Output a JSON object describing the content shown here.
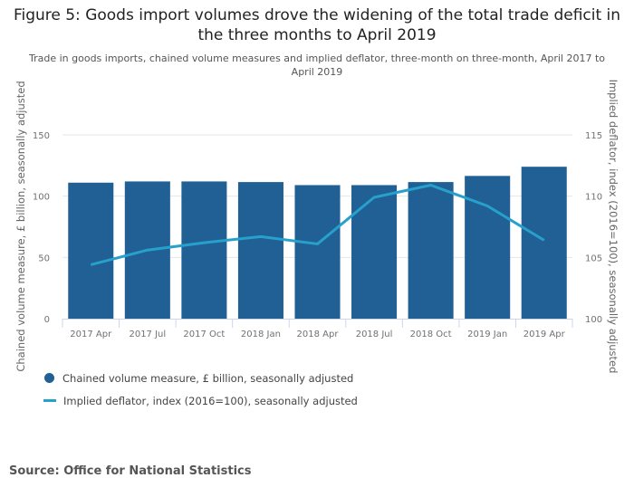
{
  "title": "Figure 5: Goods import volumes drove the widening of the total trade deficit in the three months to April 2019",
  "subtitle": "Trade in goods imports, chained volume measures and implied deflator, three-month on three-month, April 2017 to April 2019",
  "source": "Source: Office for National Statistics",
  "colors": {
    "bar": "#206095",
    "line": "#27a0cc",
    "grid": "#e6e6e6",
    "axis": "#ccd6eb"
  },
  "legend": [
    {
      "label": "Chained volume measure, £ billion, seasonally adjusted",
      "marker": "circle"
    },
    {
      "label": "Implied deflator, index (2016=100), seasonally adjusted",
      "marker": "line"
    }
  ],
  "chart_data": {
    "type": "bar+line",
    "title": "Figure 5: Goods import volumes drove the widening of the total trade deficit in the three months to April 2019",
    "subtitle": "Trade in goods imports, chained volume measures and implied deflator, three-month on three-month, April 2017 to April 2019",
    "categories": [
      "2017 Apr",
      "2017 Jul",
      "2017 Oct",
      "2018 Jan",
      "2018 Apr",
      "2018 Jul",
      "2018 Oct",
      "2019 Jan",
      "2019 Apr"
    ],
    "series": [
      {
        "name": "Chained volume measure, £ billion, seasonally adjusted",
        "type": "bar",
        "axis": "left",
        "values": [
          111,
          112,
          112,
          111.5,
          109,
          109,
          111.5,
          116.5,
          124
        ]
      },
      {
        "name": "Implied deflator, index (2016=100), seasonally adjusted",
        "type": "line",
        "axis": "right",
        "values": [
          104.4,
          105.6,
          106.2,
          106.7,
          106.1,
          109.9,
          110.9,
          109.2,
          106.4
        ]
      }
    ],
    "y_left": {
      "label": "Chained volume measure, £ billion, seasonally adjusted",
      "range": [
        0,
        150
      ],
      "ticks": [
        0,
        50,
        100,
        150
      ]
    },
    "y_right": {
      "label": "Implied deflator, index (2016=100), seasonally adjusted",
      "range": [
        100,
        115
      ],
      "ticks": [
        100,
        105,
        110,
        115
      ]
    },
    "grid": true,
    "legend_position": "bottom-left"
  }
}
